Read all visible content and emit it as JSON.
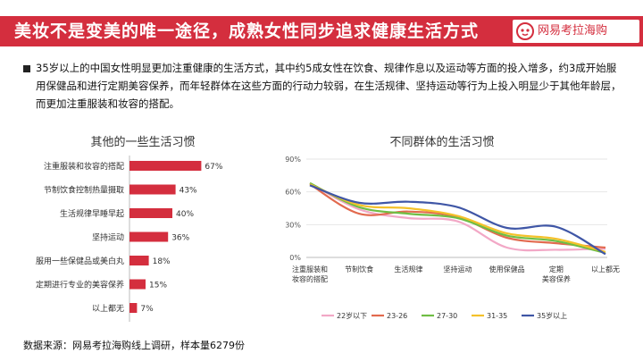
{
  "header": {
    "title": "美妆不是变美的唯一途径，成熟女性同步追求健康生活方式",
    "logo_text": "网易考拉海购",
    "accent_color": "#d42e3e"
  },
  "summary": "35岁以上的中国女性明显更加注重健康的生活方式，其中约5成女性在饮食、规律作息以及运动等方面的投入增多，约3成开始服用保健品和进行定期美容保养，而年轻群体在这些方面的行动力较弱，在生活规律、坚持运动等行为上投入明显少于其他年龄层，而更加注重服装和妆容的搭配。",
  "source": "数据来源：网易考拉海购线上调研，样本量6279份",
  "chart_data": [
    {
      "type": "bar",
      "orientation": "horizontal",
      "title": "其他的一些生活习惯",
      "categories": [
        "注重服装和妆容的搭配",
        "节制饮食控制热量摄取",
        "生活规律早睡早起",
        "坚持运动",
        "服用一些保健品或美白丸",
        "定期进行专业的美容保养",
        "以上都无"
      ],
      "values": [
        67,
        43,
        40,
        36,
        18,
        15,
        7
      ],
      "value_labels": [
        "67%",
        "43%",
        "40%",
        "36%",
        "18%",
        "15%",
        "7%"
      ],
      "color": "#d42e3e",
      "xlim": [
        0,
        100
      ]
    },
    {
      "type": "line",
      "title": "不同群体的生活习惯",
      "categories": [
        "注重服装和|妆容的搭配",
        "节制饮食",
        "生活规律",
        "坚持运动",
        "使用保健品",
        "定期|美容保养",
        "以上都无"
      ],
      "ylim": [
        0,
        90
      ],
      "yticks": [
        0,
        30,
        60,
        90
      ],
      "ytick_labels": [
        "0%",
        "30%",
        "60%",
        "90%"
      ],
      "smooth": true,
      "series": [
        {
          "name": "22岁以下",
          "color": "#f2a8c6",
          "values": [
            68,
            44,
            36,
            33,
            9,
            7,
            8
          ]
        },
        {
          "name": "23-26",
          "color": "#e26a4e",
          "values": [
            67,
            40,
            42,
            37,
            18,
            13,
            9
          ]
        },
        {
          "name": "27-30",
          "color": "#6fbe44",
          "values": [
            68,
            46,
            40,
            36,
            20,
            15,
            4
          ]
        },
        {
          "name": "31-35",
          "color": "#f4c12a",
          "values": [
            67,
            48,
            45,
            38,
            22,
            17,
            5
          ]
        },
        {
          "name": "35岁以上",
          "color": "#3f56a6",
          "values": [
            66,
            50,
            51,
            46,
            27,
            28,
            3
          ]
        }
      ]
    }
  ]
}
